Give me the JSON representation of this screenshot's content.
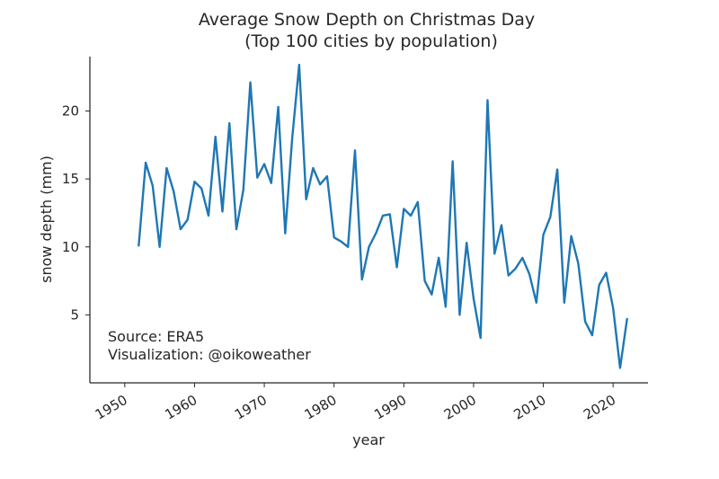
{
  "chart_data": {
    "type": "line",
    "title": "Average Snow Depth on Christmas Day",
    "subtitle": "(Top 100 cities by population)",
    "xlabel": "year",
    "ylabel": "snow depth (mm)",
    "xlim": [
      1945,
      2025
    ],
    "ylim": [
      0,
      24
    ],
    "xticks": [
      1950,
      1960,
      1970,
      1980,
      1990,
      2000,
      2010,
      2020
    ],
    "yticks": [
      5,
      10,
      15,
      20
    ],
    "grid": false,
    "series": [
      {
        "name": "snow depth",
        "color": "#1f77b4",
        "x": [
          1952,
          1953,
          1954,
          1955,
          1956,
          1957,
          1958,
          1959,
          1960,
          1961,
          1962,
          1963,
          1964,
          1965,
          1966,
          1967,
          1968,
          1969,
          1970,
          1971,
          1972,
          1973,
          1974,
          1975,
          1976,
          1977,
          1978,
          1979,
          1980,
          1981,
          1982,
          1983,
          1984,
          1985,
          1986,
          1987,
          1988,
          1989,
          1990,
          1991,
          1992,
          1993,
          1994,
          1995,
          1996,
          1997,
          1998,
          1999,
          2000,
          2001,
          2002,
          2003,
          2004,
          2005,
          2006,
          2007,
          2008,
          2009,
          2010,
          2011,
          2012,
          2013,
          2014,
          2015,
          2016,
          2017,
          2018,
          2019,
          2020,
          2021,
          2022
        ],
        "values": [
          10.1,
          16.2,
          14.5,
          10.0,
          15.8,
          14.1,
          11.3,
          12.0,
          14.8,
          14.3,
          12.3,
          18.1,
          12.6,
          19.1,
          11.3,
          14.2,
          22.1,
          15.1,
          16.1,
          14.7,
          20.3,
          11.0,
          18.0,
          23.4,
          13.5,
          15.8,
          14.6,
          15.2,
          10.7,
          10.4,
          10.0,
          17.1,
          7.6,
          10.0,
          11.0,
          12.3,
          12.4,
          8.5,
          12.8,
          12.3,
          13.3,
          7.5,
          6.5,
          9.2,
          5.6,
          16.3,
          5.0,
          10.3,
          6.2,
          3.3,
          20.8,
          9.5,
          11.6,
          7.9,
          8.4,
          9.2,
          8.0,
          5.9,
          10.9,
          12.2,
          15.7,
          5.9,
          10.8,
          8.8,
          4.5,
          3.5,
          7.2,
          8.1,
          5.5,
          1.1,
          4.7
        ]
      }
    ],
    "annotations": [
      "Source: ERA5",
      "Visualization: @oikoweather"
    ]
  }
}
